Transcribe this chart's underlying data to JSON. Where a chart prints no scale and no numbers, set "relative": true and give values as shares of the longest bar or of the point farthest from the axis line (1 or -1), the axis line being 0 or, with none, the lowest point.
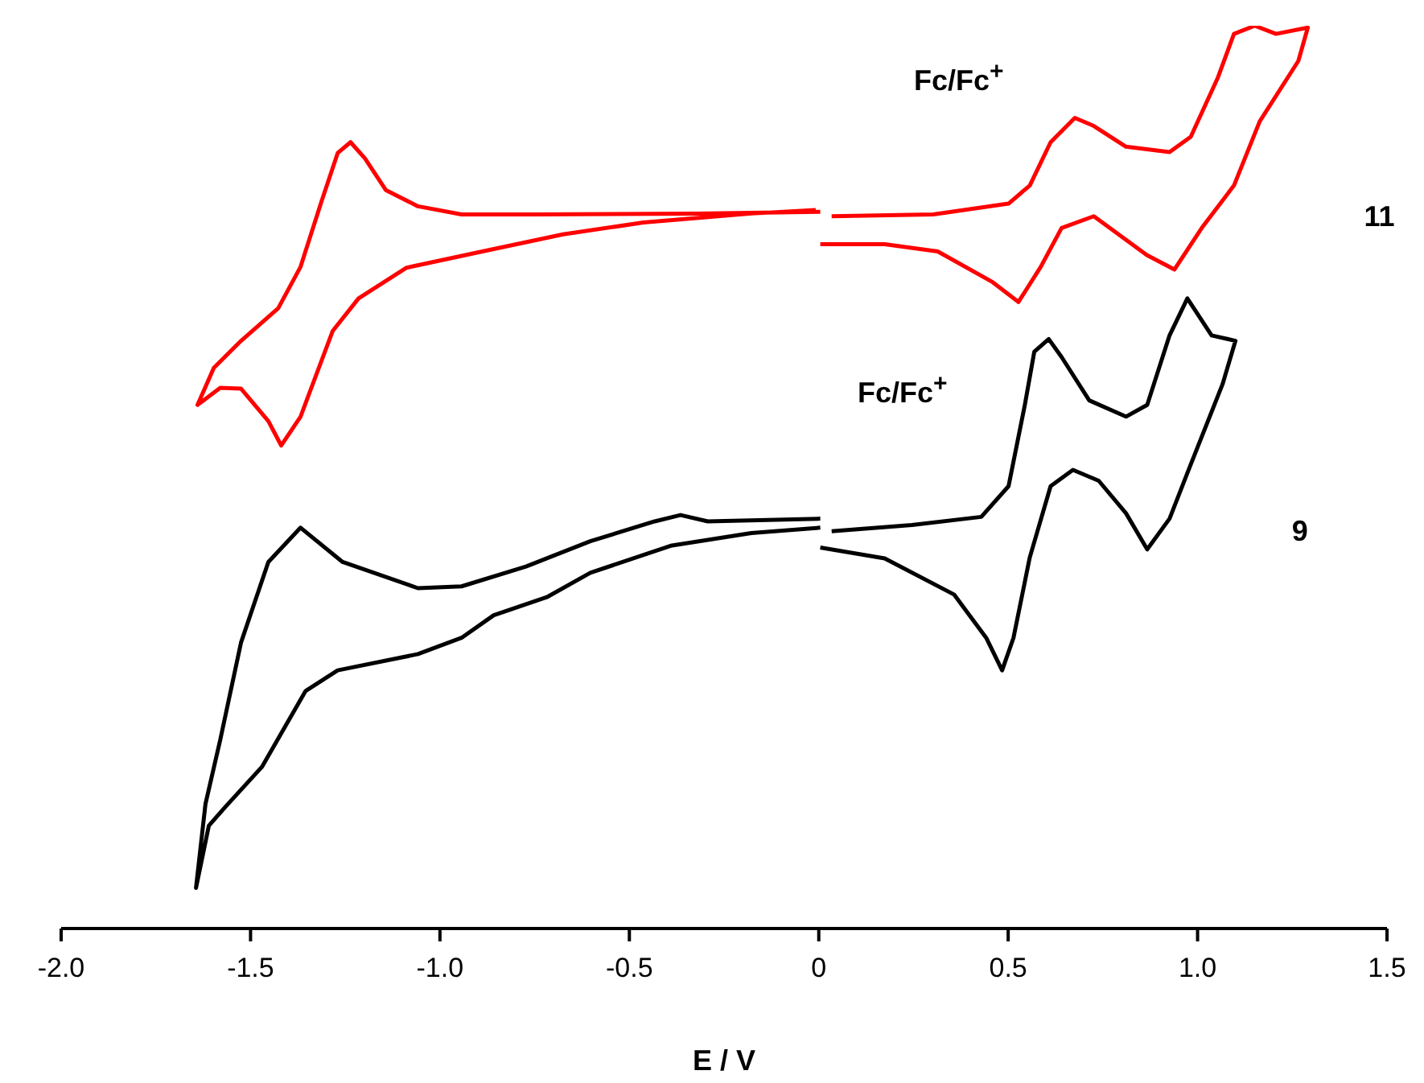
{
  "chart_data": {
    "type": "line",
    "relative": true,
    "xlabel": "E / V",
    "xlim": [
      -2.0,
      1.5
    ],
    "xticks": [
      {
        "value": -2,
        "label": "-2.0"
      },
      -1.5,
      {
        "value": -1,
        "label": "-1.0"
      },
      -0.5,
      0,
      0.5,
      {
        "value": 1,
        "label": "1.0"
      },
      1.5
    ],
    "tick_labels": "x",
    "marker": "none",
    "line_style": "solid",
    "series": [
      {
        "name": "11",
        "color": "#ff0000",
        "x": [
          0.034,
          0.302,
          0.501,
          0.557,
          0.612,
          0.676,
          0.726,
          0.811,
          0.926,
          0.982,
          1.054,
          1.096,
          1.151,
          1.207,
          1.291,
          1.266,
          1.164,
          1.096,
          1.011,
          0.939,
          0.866,
          0.726,
          0.641,
          0.586,
          0.527,
          0.459,
          0.314,
          0.174,
          0.004,
          null,
          0.004,
          -0.323,
          -0.748,
          -0.943,
          -1.058,
          -1.143,
          -1.198,
          -1.236,
          -1.27,
          -1.313,
          -1.368,
          -1.427,
          -1.525,
          -1.597,
          -1.64,
          -1.58,
          -1.525,
          -1.453,
          -1.419,
          -1.368,
          -1.283,
          -1.215,
          -1.088,
          -0.888,
          -0.675,
          -0.463,
          -0.323,
          -0.178,
          -0.008
        ],
        "values": [
          0.789,
          0.791,
          0.803,
          0.823,
          0.871,
          0.898,
          0.889,
          0.866,
          0.86,
          0.877,
          0.943,
          0.991,
          1.0,
          0.991,
          0.998,
          0.961,
          0.894,
          0.823,
          0.776,
          0.73,
          0.746,
          0.789,
          0.776,
          0.733,
          0.694,
          0.716,
          0.75,
          0.758,
          0.758,
          null,
          0.794,
          0.792,
          0.791,
          0.791,
          0.8,
          0.818,
          0.853,
          0.871,
          0.859,
          0.805,
          0.733,
          0.687,
          0.651,
          0.621,
          0.58,
          0.599,
          0.598,
          0.562,
          0.535,
          0.567,
          0.662,
          0.698,
          0.732,
          0.75,
          0.769,
          0.782,
          0.787,
          0.792,
          0.796
        ]
      },
      {
        "name": "9",
        "color": "#000000",
        "x": [
          0.034,
          0.246,
          0.429,
          0.501,
          0.544,
          0.569,
          0.607,
          0.641,
          0.714,
          0.811,
          0.867,
          0.926,
          0.973,
          1.037,
          1.1,
          1.066,
          0.981,
          0.926,
          0.867,
          0.811,
          0.739,
          0.671,
          0.612,
          0.557,
          0.514,
          0.484,
          0.442,
          0.357,
          0.174,
          0.004,
          null,
          0.004,
          -0.293,
          -0.365,
          -0.433,
          -0.603,
          -0.773,
          -0.943,
          -1.058,
          -1.257,
          -1.368,
          -1.453,
          -1.525,
          -1.58,
          -1.619,
          -1.644,
          -1.61,
          -1.568,
          -1.47,
          -1.355,
          -1.27,
          -1.058,
          -0.943,
          -0.858,
          -0.718,
          -0.603,
          -0.391,
          -0.178,
          0.004
        ],
        "values": [
          0.44,
          0.447,
          0.456,
          0.49,
          0.58,
          0.639,
          0.653,
          0.633,
          0.585,
          0.567,
          0.58,
          0.657,
          0.698,
          0.657,
          0.651,
          0.603,
          0.513,
          0.454,
          0.42,
          0.46,
          0.496,
          0.508,
          0.49,
          0.411,
          0.322,
          0.286,
          0.322,
          0.37,
          0.41,
          0.422,
          null,
          0.454,
          0.451,
          0.458,
          0.451,
          0.429,
          0.401,
          0.379,
          0.377,
          0.406,
          0.444,
          0.406,
          0.317,
          0.209,
          0.138,
          0.045,
          0.114,
          0.134,
          0.179,
          0.263,
          0.286,
          0.304,
          0.322,
          0.347,
          0.367,
          0.394,
          0.424,
          0.438,
          0.444
        ]
      }
    ],
    "annotations": [
      "Fc/Fc$^{+}$",
      "Fc/Fc$^{+}$"
    ]
  }
}
